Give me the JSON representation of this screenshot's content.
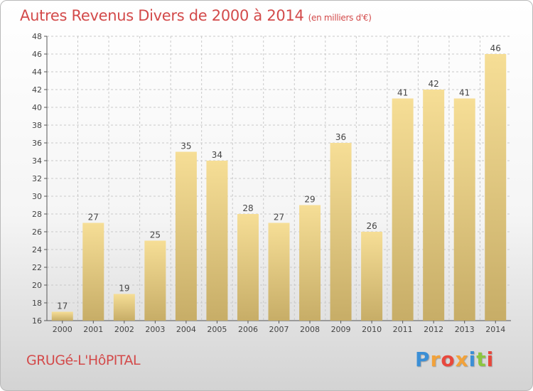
{
  "title": "Autres Revenus Divers de 2000 à 2014",
  "subtitle": "(en milliers d'€)",
  "place": "GRUGé-L'HôPITAL",
  "logo": {
    "letters": [
      "P",
      "r",
      "o",
      "x",
      "i",
      "t",
      "i"
    ],
    "colors": [
      "#3b8fd6",
      "#f2a23a",
      "#e8483d",
      "#f2a23a",
      "#3b8fd6",
      "#8cc63f",
      "#e8483d"
    ]
  },
  "colors": {
    "title": "#d34a4a",
    "bar_light": "#f6de96",
    "bar_dark": "#c7ad67",
    "grid": "#c9c9c9"
  },
  "chart_data": {
    "type": "bar",
    "categories": [
      "2000",
      "2001",
      "2002",
      "2003",
      "2004",
      "2005",
      "2006",
      "2007",
      "2008",
      "2009",
      "2010",
      "2011",
      "2012",
      "2013",
      "2014"
    ],
    "values": [
      17,
      27,
      19,
      25,
      35,
      34,
      28,
      27,
      29,
      36,
      26,
      41,
      42,
      41,
      46
    ],
    "ylim": [
      16,
      48
    ],
    "yticks": [
      16,
      18,
      20,
      22,
      24,
      26,
      28,
      30,
      32,
      34,
      36,
      38,
      40,
      42,
      44,
      46,
      48
    ],
    "grid": true,
    "data_labels": true
  }
}
